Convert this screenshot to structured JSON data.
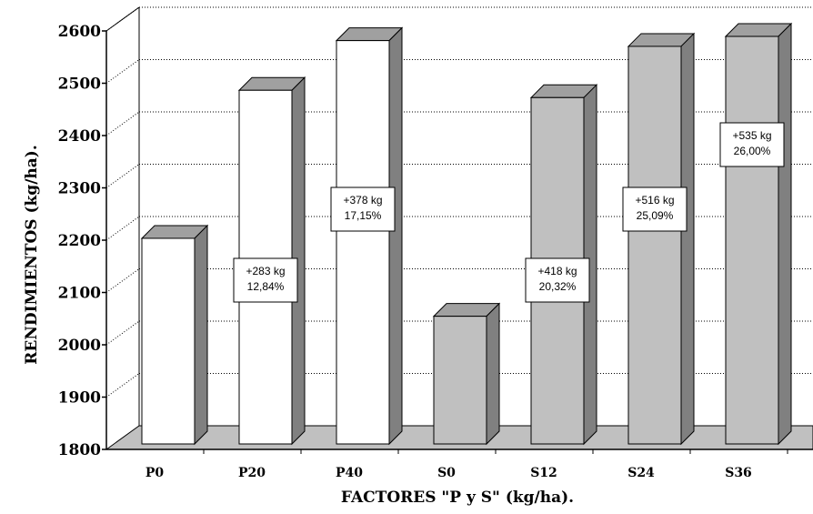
{
  "chart_data": {
    "type": "bar",
    "xlabel": "FACTORES \"P y S\" (kg/ha).",
    "ylabel": "RENDIMIENTOS (kg/ha).",
    "categories": [
      "P0",
      "P20",
      "P40",
      "S0",
      "S12",
      "S24",
      "S36"
    ],
    "values": [
      2207,
      2490,
      2585,
      2058,
      2476,
      2574,
      2593
    ],
    "bar_colors": [
      "#ffffff",
      "#ffffff",
      "#ffffff",
      "#c0c0c0",
      "#c0c0c0",
      "#c0c0c0",
      "#c0c0c0"
    ],
    "ylim": [
      1800,
      2600
    ],
    "yticks": [
      "1800",
      "1900",
      "2000",
      "2100",
      "2200",
      "2300",
      "2400",
      "2500",
      "2600"
    ],
    "grid": true,
    "annotations": [
      {
        "category": "P20",
        "line1": "+283 kg",
        "line2": "12,84%"
      },
      {
        "category": "P40",
        "line1": "+378 kg",
        "line2": "17,15%"
      },
      {
        "category": "S12",
        "line1": "+418 kg",
        "line2": "20,32%"
      },
      {
        "category": "S24",
        "line1": "+516 kg",
        "line2": "25,09%"
      },
      {
        "category": "S36",
        "line1": "+535 kg",
        "line2": "26,00%"
      }
    ]
  }
}
